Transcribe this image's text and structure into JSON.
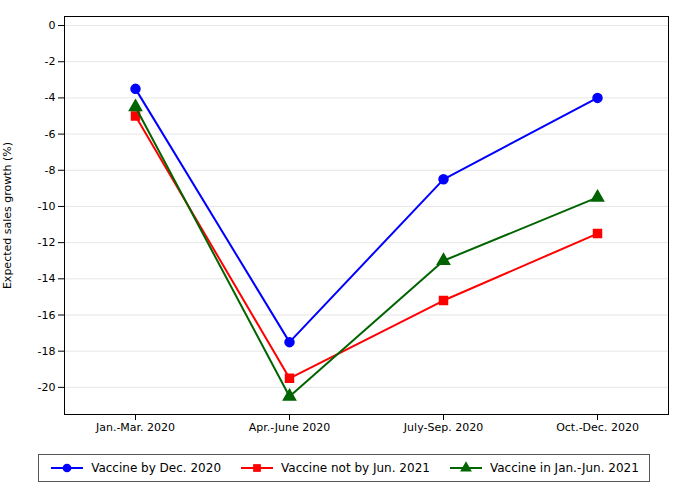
{
  "chart_data": {
    "type": "line",
    "categories": [
      "Jan.-Mar. 2020",
      "Apr.-June 2020",
      "July-Sep. 2020",
      "Oct.-Dec. 2020"
    ],
    "series": [
      {
        "name": "Vaccine by Dec. 2020",
        "color": "#0000ff",
        "marker": "circle",
        "values": [
          -3.5,
          -17.5,
          -8.5,
          -4.0
        ]
      },
      {
        "name": "Vaccine not by Jun. 2021",
        "color": "#ff0000",
        "marker": "square",
        "values": [
          -5.0,
          -19.5,
          -15.2,
          -11.5
        ]
      },
      {
        "name": "Vaccine in Jan.-Jun. 2021",
        "color": "#006400",
        "marker": "triangle",
        "values": [
          -4.5,
          -20.5,
          -13.0,
          -9.5
        ]
      }
    ],
    "ylabel": "Expected sales growth (%)",
    "ylim": [
      -21.5,
      0.5
    ],
    "yticks": [
      0,
      -2,
      -4,
      -6,
      -8,
      -10,
      -12,
      -14,
      -16,
      -18,
      -20
    ],
    "grid": true,
    "legend": "bottom"
  }
}
